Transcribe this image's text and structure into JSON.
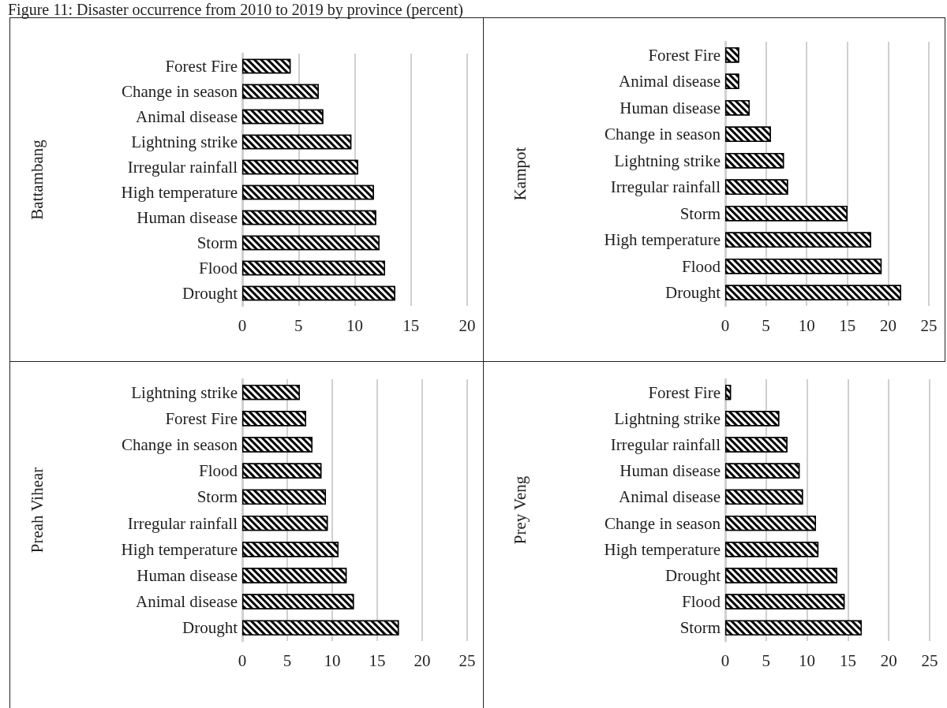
{
  "chart_data": [
    {
      "type": "bar",
      "orientation": "horizontal",
      "title": "Figure 11: Disaster occurrence from 2010 to 2019 by province (percent)",
      "ylabel": "Battambang",
      "categories": [
        "Forest Fire",
        "Change in season",
        "Animal disease",
        "Lightning strike",
        "Irregular rainfall",
        "High temperature",
        "Human disease",
        "Storm",
        "Flood",
        "Drought"
      ],
      "values": [
        4.3,
        6.8,
        7.2,
        9.7,
        10.3,
        11.7,
        11.9,
        12.2,
        12.7,
        13.6
      ],
      "color": "#000000",
      "xlim": [
        0,
        20
      ],
      "xticks": [
        0,
        5,
        10,
        15,
        20
      ],
      "grid": "x"
    },
    {
      "type": "bar",
      "orientation": "horizontal",
      "ylabel": "Kampot",
      "categories": [
        "Forest Fire",
        "Animal disease",
        "Human disease",
        "Change in season",
        "Lightning strike",
        "Irregular rainfall",
        "Storm",
        "High temperature",
        "Flood",
        "Drought"
      ],
      "values": [
        1.7,
        1.7,
        3.0,
        5.6,
        7.2,
        7.7,
        15.0,
        17.9,
        19.2,
        21.6
      ],
      "color": "#000000",
      "xlim": [
        0,
        25
      ],
      "xticks": [
        0,
        5,
        10,
        15,
        20,
        25
      ],
      "grid": "x"
    },
    {
      "type": "bar",
      "orientation": "horizontal",
      "ylabel": "Preah Vihear",
      "categories": [
        "Lightning strike",
        "Forest Fire",
        "Change in season",
        "Flood",
        "Storm",
        "Irregular rainfall",
        "High temperature",
        "Human disease",
        "Animal disease",
        "Drought"
      ],
      "values": [
        6.4,
        7.1,
        7.8,
        8.8,
        9.3,
        9.5,
        10.7,
        11.6,
        12.4,
        17.4
      ],
      "color": "#000000",
      "xlim": [
        0,
        25
      ],
      "xticks": [
        0,
        5,
        10,
        15,
        20,
        25
      ],
      "grid": "x"
    },
    {
      "type": "bar",
      "orientation": "horizontal",
      "ylabel": "Prey Veng",
      "categories": [
        "Forest Fire",
        "Lightning strike",
        "Irregular rainfall",
        "Human disease",
        "Animal disease",
        "Change in season",
        "High temperature",
        "Drought",
        "Flood",
        "Storm"
      ],
      "values": [
        0.7,
        6.6,
        7.6,
        9.1,
        9.5,
        11.1,
        11.4,
        13.7,
        14.6,
        16.7
      ],
      "color": "#000000",
      "xlim": [
        0,
        25
      ],
      "xticks": [
        0,
        5,
        10,
        15,
        20,
        25
      ],
      "grid": "x"
    }
  ]
}
